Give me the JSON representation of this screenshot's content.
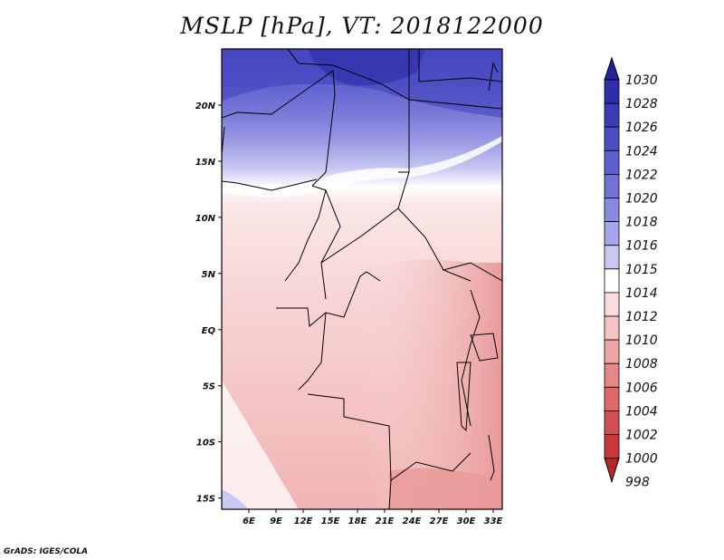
{
  "title": "MSLP [hPa], VT: 2018122000",
  "credit": "GrADS: IGES/COLA",
  "map": {
    "lon_range": [
      3,
      34
    ],
    "lat_range": [
      -16,
      25
    ],
    "lat_ticks": [
      {
        "value": 20,
        "label": "20N"
      },
      {
        "value": 15,
        "label": "15N"
      },
      {
        "value": 10,
        "label": "10N"
      },
      {
        "value": 5,
        "label": "5N"
      },
      {
        "value": 0,
        "label": "EQ"
      },
      {
        "value": -5,
        "label": "5S"
      },
      {
        "value": -10,
        "label": "10S"
      },
      {
        "value": -15,
        "label": "15S"
      }
    ],
    "lon_ticks": [
      {
        "value": 6,
        "label": "6E"
      },
      {
        "value": 9,
        "label": "9E"
      },
      {
        "value": 12,
        "label": "12E"
      },
      {
        "value": 15,
        "label": "15E"
      },
      {
        "value": 18,
        "label": "18E"
      },
      {
        "value": 21,
        "label": "21E"
      },
      {
        "value": 24,
        "label": "24E"
      },
      {
        "value": 27,
        "label": "27E"
      },
      {
        "value": 30,
        "label": "30E"
      },
      {
        "value": 33,
        "label": "33E"
      }
    ],
    "border_color": "#000000"
  },
  "colorbar": {
    "labels": [
      "1030",
      "1028",
      "1026",
      "1024",
      "1022",
      "1020",
      "1018",
      "1016",
      "1015",
      "1014",
      "1012",
      "1010",
      "1008",
      "1006",
      "1004",
      "1002",
      "1000",
      "998"
    ],
    "colors": [
      "#23239c",
      "#2e2eaa",
      "#3c3cb6",
      "#4d4dc2",
      "#5e5ecc",
      "#7272d6",
      "#8a8ae2",
      "#a6a6ec",
      "#c9c9f4",
      "#ffffff",
      "#f9dcdc",
      "#f6c4c4",
      "#eea6a6",
      "#e68686",
      "#de6a6a",
      "#d45050",
      "#c83838",
      "#b42a2a"
    ]
  }
}
